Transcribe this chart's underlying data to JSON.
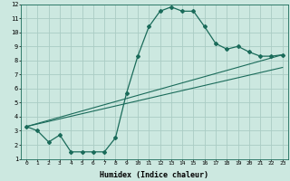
{
  "xlabel": "Humidex (Indice chaleur)",
  "bg_color": "#cce8e0",
  "grid_color": "#aaccc4",
  "line_color": "#1a6b5a",
  "xlim": [
    -0.5,
    23.5
  ],
  "ylim": [
    1,
    12
  ],
  "xticks": [
    0,
    1,
    2,
    3,
    4,
    5,
    6,
    7,
    8,
    9,
    10,
    11,
    12,
    13,
    14,
    15,
    16,
    17,
    18,
    19,
    20,
    21,
    22,
    23
  ],
  "yticks": [
    1,
    2,
    3,
    4,
    5,
    6,
    7,
    8,
    9,
    10,
    11,
    12
  ],
  "curve1_x": [
    0,
    1,
    2,
    3,
    4,
    5,
    6,
    7,
    8,
    9,
    10,
    11,
    12,
    13,
    14,
    15,
    16,
    17,
    18,
    19,
    20,
    21,
    22,
    23
  ],
  "curve1_y": [
    3.3,
    3.0,
    2.2,
    2.7,
    1.5,
    1.5,
    1.5,
    1.5,
    2.5,
    5.7,
    8.3,
    10.4,
    11.5,
    11.8,
    11.5,
    11.5,
    10.4,
    9.2,
    8.8,
    9.0,
    8.6,
    8.3,
    8.3,
    8.4
  ],
  "curve2_x": [
    0,
    23
  ],
  "curve2_y": [
    3.3,
    8.4
  ],
  "curve3_x": [
    0,
    23
  ],
  "curve3_y": [
    3.3,
    7.5
  ],
  "xticklabel_fontsize": 4.5,
  "yticklabel_fontsize": 5.0,
  "xlabel_fontsize": 6.0
}
